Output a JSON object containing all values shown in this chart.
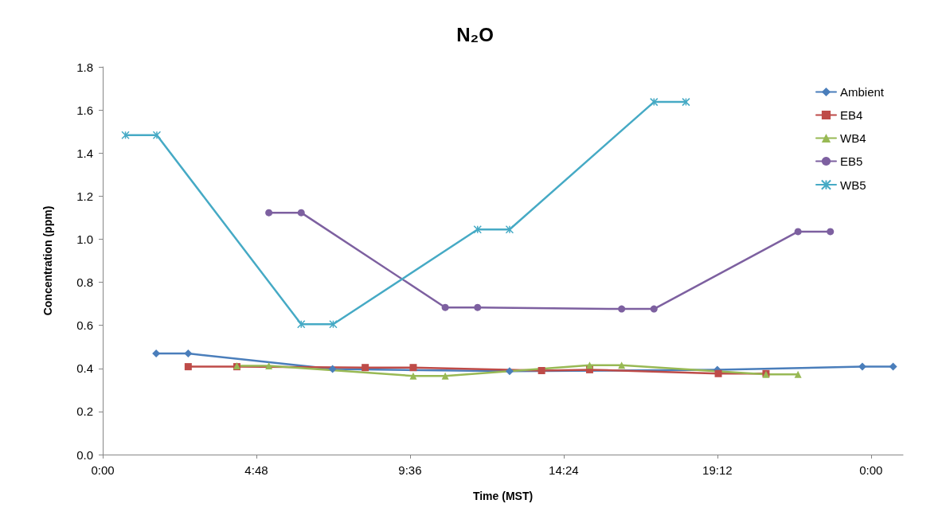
{
  "chart_data": {
    "type": "line",
    "title": "N₂O",
    "xlabel": "Time (MST)",
    "ylabel": "Concentration (ppm)",
    "xlim": [
      0,
      25
    ],
    "xticks": [
      {
        "value": 0,
        "label": "0:00"
      },
      {
        "value": 4.8,
        "label": "4:48"
      },
      {
        "value": 9.6,
        "label": "9:36"
      },
      {
        "value": 14.4,
        "label": "14:24"
      },
      {
        "value": 19.2,
        "label": "19:12"
      },
      {
        "value": 24,
        "label": "0:00"
      }
    ],
    "ylim": [
      0,
      1.8
    ],
    "yticks": [
      {
        "value": 0,
        "label": "0.0"
      },
      {
        "value": 0.2,
        "label": "0.2"
      },
      {
        "value": 0.4,
        "label": "0.4"
      },
      {
        "value": 0.6,
        "label": "0.6"
      },
      {
        "value": 0.8,
        "label": "0.8"
      },
      {
        "value": 1.0,
        "label": "1.0"
      },
      {
        "value": 1.2,
        "label": "1.2"
      },
      {
        "value": 1.4,
        "label": "1.4"
      },
      {
        "value": 1.6,
        "label": "1.6"
      },
      {
        "value": 1.8,
        "label": "1.8"
      }
    ],
    "grid": false,
    "legend": "top right",
    "line_style": "solid",
    "series": [
      {
        "name": "Ambient",
        "color": "#4a7ebb",
        "marker": "diamond",
        "x": [
          1.67,
          2.67,
          7.18,
          12.71,
          19.2,
          23.73,
          24.69
        ],
        "values": [
          0.469,
          0.469,
          0.397,
          0.387,
          0.394,
          0.408,
          0.408
        ]
      },
      {
        "name": "EB4",
        "color": "#be4b48",
        "marker": "square",
        "x": [
          2.67,
          4.19,
          8.2,
          9.7,
          13.71,
          15.21,
          19.23,
          20.72
        ],
        "values": [
          0.408,
          0.408,
          0.404,
          0.404,
          0.39,
          0.394,
          0.376,
          0.376
        ]
      },
      {
        "name": "WB4",
        "color": "#98b954",
        "marker": "triangle",
        "x": [
          4.19,
          5.19,
          9.7,
          10.7,
          15.21,
          16.21,
          20.72,
          21.72
        ],
        "values": [
          0.412,
          0.412,
          0.365,
          0.365,
          0.415,
          0.415,
          0.372,
          0.372
        ]
      },
      {
        "name": "EB5",
        "color": "#7d60a0",
        "marker": "circle",
        "x": [
          5.19,
          6.2,
          10.7,
          11.71,
          16.21,
          17.22,
          21.72,
          22.73
        ],
        "values": [
          1.123,
          1.123,
          0.683,
          0.683,
          0.676,
          0.676,
          1.035,
          1.035
        ]
      },
      {
        "name": "WB5",
        "color": "#46aac5",
        "marker": "cross",
        "x": [
          0.71,
          1.69,
          6.2,
          7.2,
          11.71,
          12.71,
          17.22,
          18.22
        ],
        "values": [
          1.483,
          1.483,
          0.605,
          0.605,
          1.045,
          1.045,
          1.637,
          1.637
        ]
      }
    ]
  }
}
